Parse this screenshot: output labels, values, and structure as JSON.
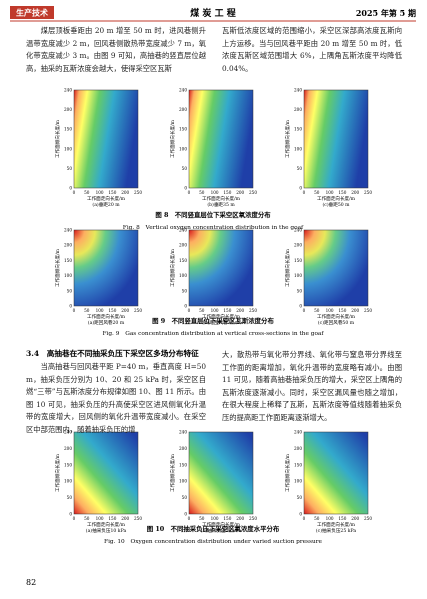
{
  "header": {
    "section": "生产技术",
    "journal": "煤 炭 工 程",
    "issue": "2025 年第 5 期"
  },
  "paragraphs": [
    "煤层顶板垂距由 20 m 增至 50 m 时，进风巷侧升温带宽度减少 2 m，回风巷侧散热带宽度减少 7 m，氧化带宽度减少 3 m。由图 9 可知，高抽巷的竖直层位越高，抽采的瓦斯浓度会越大，使得采空区瓦斯",
    "瓦斯低浓度区域的范围缩小，采空区深部高浓度瓦斯向上方运移。当与回风巷平距由 20 m 增至 50 m 时，低浓度瓦斯区域范围增大 6%，上隅角瓦斯浓度平均降低 0.04%。",
    "当高抽巷与回风巷平距 P=40 m，垂直高度 H=50 m，抽采负压分别为 10、20 和 25 kPa 时，采空区自燃“三带”与瓦斯浓度分布规律如图 10、图 11 所示。由图 10 可见，抽采负压的升高使采空区进风侧氧化升温带的宽度增大，回风侧的氧化升温带宽度减小。在采空区中部范围内，随着抽采负压的增",
    "大，散热带与氧化带分界线、氧化带与窒息带分界线至工作面的距离增加，氧化升温带的宽度略有减小。由图 11 可见，随着高抽巷抽采负压的增大，采空区上隅角的瓦斯浓度逐渐减小。同时，采空区漏风量也随之增加，在很大程度上稀释了瓦斯，瓦斯浓度等值线随着抽采负压的提高距工作面距离逐渐增大。"
  ],
  "section_heading": "3.4　高抽巷在不同抽采负压下采空区多场分布特征",
  "figures": [
    {
      "panels": [
        "(a)垂距20 m",
        "(b)垂距35 m",
        "(c)垂距50 m"
      ],
      "y_axis_label": "工作面倾向长度/m",
      "x_axis_label": "工作面走向长度/m",
      "yticks": [
        240,
        200,
        150,
        100,
        50,
        0
      ],
      "xticks": [
        0,
        50,
        100,
        150,
        200,
        250
      ],
      "caption_zh": "图 8　不同竖直层位下采空区氧浓度分布",
      "caption_en": "Fig. 8　Vertical oxygen concentration distribution in the goaf"
    },
    {
      "panels": [
        "(a)距回风巷20 m",
        "(b)距回风巷35 m",
        "(c)距回风巷50 m"
      ],
      "y_axis_label": "工作面倾向长度/m",
      "x_axis_label": "工作面走向长度/m",
      "yticks": [
        240,
        200,
        150,
        100,
        50,
        0
      ],
      "xticks": [
        0,
        50,
        100,
        150,
        200,
        250
      ],
      "caption_zh": "图 9　不同竖直层位下采空区瓦斯浓度分布",
      "caption_en": "Fig. 9　Gas concentration distribution at vertical cross-sections in the goaf"
    },
    {
      "panels": [
        "(a)抽采负压10 kPa",
        "(b)抽采负压20 kPa",
        "(c)抽采负压25 kPa"
      ],
      "y_axis_label": "工作面倾向长度/m",
      "x_axis_label": "工作面走向长度/m",
      "yticks": [
        240,
        200,
        150,
        100,
        50,
        0
      ],
      "xticks": [
        0,
        50,
        100,
        150,
        200,
        250
      ],
      "caption_zh": "图 10　不同抽采负压下采空区氧浓度水平分布",
      "caption_en": "Fig. 10　Oxygen concentration distribution under varied suction pressure"
    }
  ],
  "page_number": "82"
}
